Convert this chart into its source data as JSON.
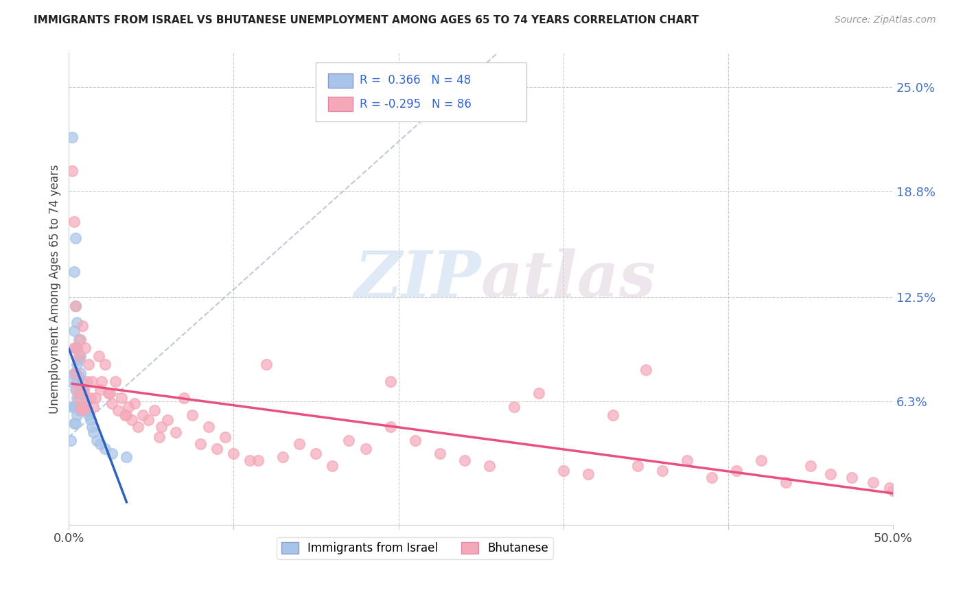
{
  "title": "IMMIGRANTS FROM ISRAEL VS BHUTANESE UNEMPLOYMENT AMONG AGES 65 TO 74 YEARS CORRELATION CHART",
  "source": "Source: ZipAtlas.com",
  "ylabel": "Unemployment Among Ages 65 to 74 years",
  "xlim": [
    0.0,
    0.5
  ],
  "ylim": [
    -0.01,
    0.27
  ],
  "right_ytick_labels": [
    "25.0%",
    "18.8%",
    "12.5%",
    "6.3%"
  ],
  "right_ytick_positions": [
    0.25,
    0.188,
    0.125,
    0.063
  ],
  "israel_color": "#a8c4e8",
  "bhutan_color": "#f4a8b8",
  "israel_line_color": "#3060c0",
  "bhutan_line_color": "#e85080",
  "dashed_color": "#b0bcd0",
  "legend_israel_label": "Immigrants from Israel",
  "legend_bhutan_label": "Bhutanese",
  "R_israel": 0.366,
  "N_israel": 48,
  "R_bhutan": -0.295,
  "N_bhutan": 86,
  "watermark_zip": "ZIP",
  "watermark_atlas": "atlas",
  "israel_scatter_x": [
    0.001,
    0.002,
    0.002,
    0.002,
    0.003,
    0.003,
    0.003,
    0.003,
    0.003,
    0.004,
    0.004,
    0.004,
    0.004,
    0.004,
    0.004,
    0.004,
    0.005,
    0.005,
    0.005,
    0.005,
    0.005,
    0.005,
    0.006,
    0.006,
    0.006,
    0.006,
    0.006,
    0.007,
    0.007,
    0.007,
    0.007,
    0.008,
    0.008,
    0.008,
    0.009,
    0.009,
    0.01,
    0.01,
    0.011,
    0.012,
    0.013,
    0.014,
    0.015,
    0.017,
    0.019,
    0.022,
    0.026,
    0.035
  ],
  "israel_scatter_y": [
    0.04,
    0.22,
    0.075,
    0.06,
    0.14,
    0.105,
    0.08,
    0.06,
    0.05,
    0.16,
    0.12,
    0.095,
    0.08,
    0.07,
    0.06,
    0.05,
    0.11,
    0.095,
    0.085,
    0.075,
    0.065,
    0.055,
    0.1,
    0.088,
    0.078,
    0.068,
    0.058,
    0.09,
    0.08,
    0.07,
    0.06,
    0.075,
    0.068,
    0.058,
    0.07,
    0.06,
    0.065,
    0.058,
    0.058,
    0.055,
    0.052,
    0.048,
    0.045,
    0.04,
    0.038,
    0.035,
    0.032,
    0.03
  ],
  "bhutan_scatter_x": [
    0.002,
    0.003,
    0.003,
    0.004,
    0.004,
    0.005,
    0.005,
    0.006,
    0.006,
    0.007,
    0.007,
    0.008,
    0.008,
    0.009,
    0.01,
    0.01,
    0.011,
    0.012,
    0.013,
    0.014,
    0.015,
    0.016,
    0.018,
    0.019,
    0.02,
    0.022,
    0.024,
    0.026,
    0.028,
    0.03,
    0.032,
    0.034,
    0.036,
    0.038,
    0.04,
    0.042,
    0.045,
    0.048,
    0.052,
    0.056,
    0.06,
    0.065,
    0.07,
    0.075,
    0.08,
    0.085,
    0.09,
    0.095,
    0.1,
    0.11,
    0.12,
    0.13,
    0.14,
    0.15,
    0.16,
    0.17,
    0.18,
    0.195,
    0.21,
    0.225,
    0.24,
    0.255,
    0.27,
    0.285,
    0.3,
    0.315,
    0.33,
    0.345,
    0.36,
    0.375,
    0.39,
    0.405,
    0.42,
    0.435,
    0.45,
    0.462,
    0.475,
    0.488,
    0.498,
    0.5,
    0.025,
    0.035,
    0.055,
    0.115,
    0.195,
    0.35
  ],
  "bhutan_scatter_y": [
    0.2,
    0.17,
    0.095,
    0.12,
    0.08,
    0.095,
    0.07,
    0.09,
    0.065,
    0.1,
    0.06,
    0.108,
    0.058,
    0.07,
    0.095,
    0.06,
    0.075,
    0.085,
    0.065,
    0.075,
    0.06,
    0.065,
    0.09,
    0.07,
    0.075,
    0.085,
    0.068,
    0.062,
    0.075,
    0.058,
    0.065,
    0.055,
    0.06,
    0.052,
    0.062,
    0.048,
    0.055,
    0.052,
    0.058,
    0.048,
    0.052,
    0.045,
    0.065,
    0.055,
    0.038,
    0.048,
    0.035,
    0.042,
    0.032,
    0.028,
    0.085,
    0.03,
    0.038,
    0.032,
    0.025,
    0.04,
    0.035,
    0.048,
    0.04,
    0.032,
    0.028,
    0.025,
    0.06,
    0.068,
    0.022,
    0.02,
    0.055,
    0.025,
    0.022,
    0.028,
    0.018,
    0.022,
    0.028,
    0.015,
    0.025,
    0.02,
    0.018,
    0.015,
    0.012,
    0.01,
    0.068,
    0.055,
    0.042,
    0.028,
    0.075,
    0.082
  ]
}
